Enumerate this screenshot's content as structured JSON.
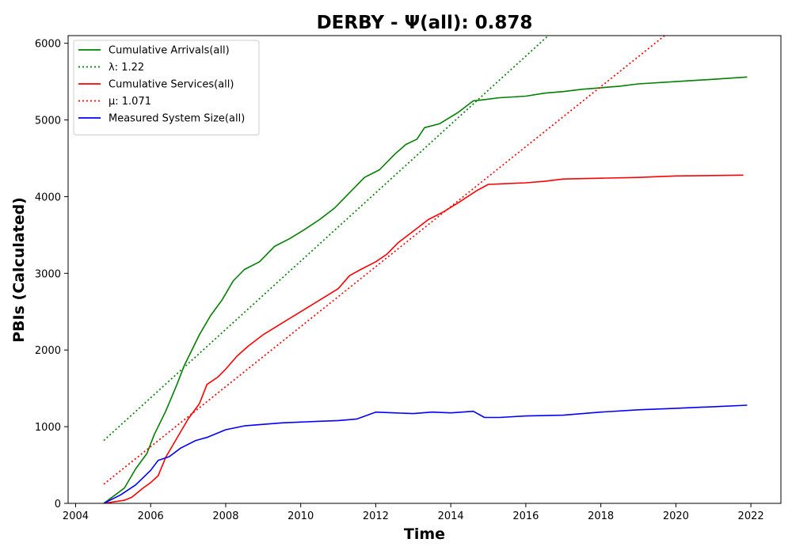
{
  "chart_data": {
    "type": "line",
    "title": "DERBY -  Ψ(all): 0.878",
    "xlabel": "Time",
    "ylabel": "PBIs (Calculated)",
    "xlim": [
      2003.8,
      2022.8
    ],
    "ylim": [
      0,
      6100
    ],
    "xticks": [
      2004,
      2006,
      2008,
      2010,
      2012,
      2014,
      2016,
      2018,
      2020,
      2022
    ],
    "yticks": [
      0,
      1000,
      2000,
      3000,
      4000,
      5000,
      6000
    ],
    "grid": false,
    "legend_position": "upper-left",
    "series": [
      {
        "name": "Cumulative Arrivals(all)",
        "color": "#008000",
        "style": "solid",
        "x": [
          2004.75,
          2005.0,
          2005.3,
          2005.6,
          2005.9,
          2006.1,
          2006.4,
          2006.7,
          2006.9,
          2007.3,
          2007.6,
          2007.9,
          2008.2,
          2008.5,
          2008.9,
          2009.3,
          2009.7,
          2010.1,
          2010.5,
          2010.9,
          2011.3,
          2011.7,
          2012.1,
          2012.5,
          2012.8,
          2013.1,
          2013.3,
          2013.7,
          2014.2,
          2014.6,
          2014.8,
          2015.3,
          2016.0,
          2016.5,
          2017.0,
          2017.5,
          2018.0,
          2018.5,
          2019.0,
          2020.0,
          2021.0,
          2021.9
        ],
        "y": [
          0,
          90,
          200,
          450,
          650,
          900,
          1200,
          1550,
          1800,
          2200,
          2450,
          2650,
          2900,
          3050,
          3150,
          3350,
          3450,
          3570,
          3700,
          3850,
          4050,
          4250,
          4350,
          4550,
          4680,
          4750,
          4900,
          4950,
          5100,
          5250,
          5260,
          5290,
          5310,
          5350,
          5370,
          5400,
          5420,
          5440,
          5470,
          5500,
          5530,
          5560
        ]
      },
      {
        "name": "λ: 1.22",
        "color": "#008000",
        "style": "dotted",
        "x": [
          2004.75,
          2016.6
        ],
        "y": [
          820,
          6100
        ]
      },
      {
        "name": "Cumulative Services(all)",
        "color": "#ff0000",
        "style": "solid",
        "x": [
          2004.75,
          2005.3,
          2005.5,
          2005.8,
          2006.0,
          2006.2,
          2006.4,
          2006.7,
          2007.0,
          2007.3,
          2007.5,
          2007.8,
          2008.0,
          2008.3,
          2008.6,
          2009.0,
          2009.5,
          2010.0,
          2010.5,
          2011.0,
          2011.3,
          2011.6,
          2012.0,
          2012.3,
          2012.6,
          2013.0,
          2013.4,
          2013.8,
          2014.2,
          2014.7,
          2015.0,
          2016.0,
          2016.5,
          2017.0,
          2018.0,
          2019.0,
          2020.0,
          2021.0,
          2021.8
        ],
        "y": [
          0,
          40,
          80,
          200,
          270,
          360,
          600,
          850,
          1100,
          1300,
          1550,
          1650,
          1750,
          1920,
          2050,
          2200,
          2350,
          2500,
          2650,
          2800,
          2970,
          3050,
          3150,
          3250,
          3400,
          3550,
          3700,
          3800,
          3920,
          4080,
          4160,
          4180,
          4200,
          4230,
          4240,
          4250,
          4270,
          4275,
          4280
        ]
      },
      {
        "name": "μ: 1.071",
        "color": "#ff0000",
        "style": "dotted",
        "x": [
          2004.75,
          2019.7
        ],
        "y": [
          250,
          6100
        ]
      },
      {
        "name": "Measured System Size(all)",
        "color": "#0000ff",
        "style": "solid",
        "x": [
          2004.75,
          2005.2,
          2005.6,
          2006.0,
          2006.2,
          2006.5,
          2006.8,
          2007.2,
          2007.5,
          2008.0,
          2008.5,
          2009.0,
          2009.5,
          2010.0,
          2010.5,
          2011.0,
          2011.5,
          2012.0,
          2012.5,
          2013.0,
          2013.5,
          2014.0,
          2014.6,
          2014.9,
          2015.3,
          2016.0,
          2017.0,
          2018.0,
          2019.0,
          2020.0,
          2021.0,
          2021.9
        ],
        "y": [
          0,
          110,
          240,
          430,
          560,
          610,
          720,
          820,
          860,
          960,
          1010,
          1030,
          1050,
          1060,
          1070,
          1080,
          1100,
          1190,
          1180,
          1170,
          1190,
          1180,
          1200,
          1120,
          1120,
          1140,
          1150,
          1190,
          1220,
          1240,
          1260,
          1280
        ]
      }
    ]
  }
}
